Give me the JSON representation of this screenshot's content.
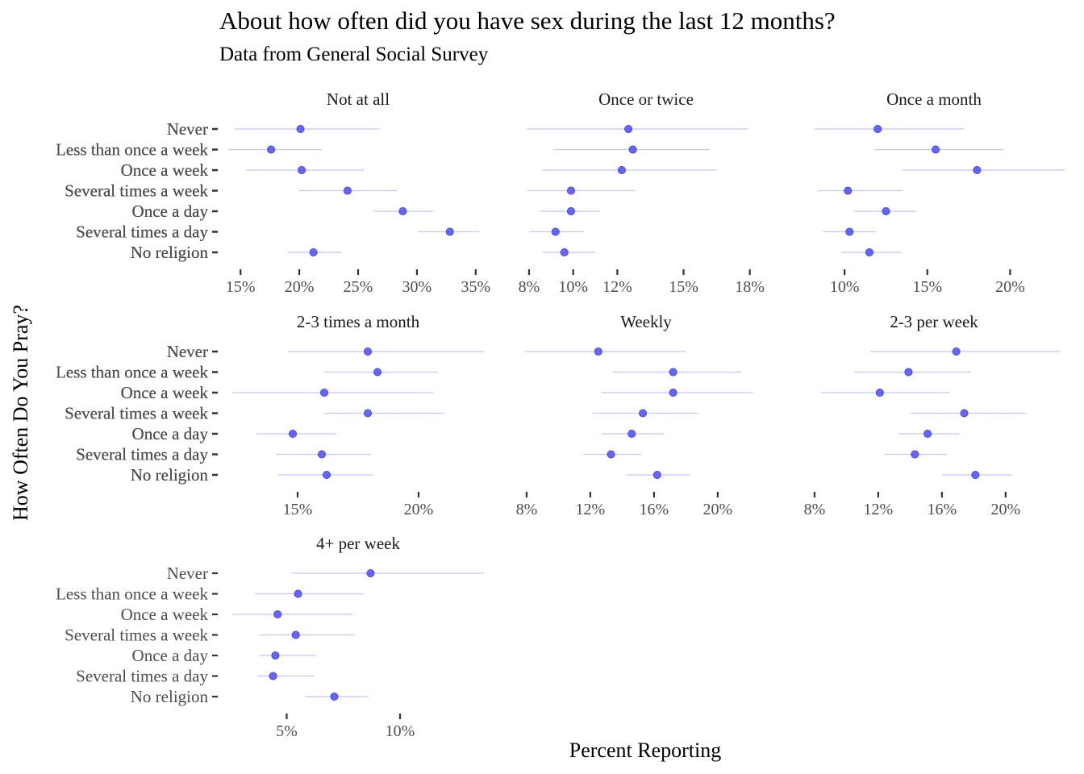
{
  "chart_data": {
    "type": "dot-errorbar-facets",
    "title": "About how often did you have sex during the last 12 months?",
    "subtitle": "Data from General Social Survey",
    "xlabel": "Percent Reporting",
    "ylabel": "How Often Do You Pray?",
    "categories": [
      "Never",
      "Less than once a week",
      "Once a week",
      "Several times a week",
      "Once a day",
      "Several times a day",
      "No religion"
    ],
    "point_color": "#5555ff",
    "bar_color": "#c4c4ff",
    "facets": [
      {
        "name": "Not at all",
        "xlim": [
          14.3,
          35.7
        ],
        "ticks": [
          15,
          20,
          25,
          30,
          35
        ],
        "tick_labels": [
          "15%",
          "20%",
          "25%",
          "30%",
          "35%"
        ],
        "values": [
          20.1,
          17.6,
          20.2,
          24.1,
          28.8,
          32.8,
          21.2
        ],
        "lower": [
          14.5,
          14.0,
          15.5,
          20.0,
          26.3,
          30.1,
          19.0
        ],
        "upper": [
          26.8,
          21.9,
          25.5,
          28.3,
          31.4,
          35.3,
          23.6
        ]
      },
      {
        "name": "Once or twice",
        "xlim": [
          7.6,
          19.0
        ],
        "ticks": [
          8,
          10,
          12,
          15,
          18
        ],
        "tick_labels": [
          "8%",
          "10%",
          "12%",
          "15%",
          "18%"
        ],
        "values": [
          12.5,
          12.7,
          12.2,
          9.9,
          9.9,
          9.2,
          9.6
        ],
        "lower": [
          7.9,
          9.1,
          8.6,
          7.9,
          8.5,
          8.0,
          8.6
        ],
        "upper": [
          17.9,
          16.2,
          16.5,
          12.8,
          11.2,
          10.5,
          11.0
        ]
      },
      {
        "name": "Once a month",
        "xlim": [
          7.8,
          23.0
        ],
        "ticks": [
          10,
          15,
          20
        ],
        "tick_labels": [
          "10%",
          "15%",
          "20%"
        ],
        "values": [
          12.0,
          15.5,
          18.0,
          10.2,
          12.5,
          10.3,
          11.5
        ],
        "lower": [
          8.2,
          11.8,
          13.5,
          8.4,
          10.6,
          8.7,
          9.8
        ],
        "upper": [
          17.2,
          19.6,
          23.3,
          13.5,
          14.3,
          11.9,
          13.4
        ]
      },
      {
        "name": "2-3 times a month",
        "xlim": [
          12.3,
          22.7
        ],
        "ticks": [
          15,
          20
        ],
        "tick_labels": [
          "15%",
          "20%"
        ],
        "values": [
          17.9,
          18.3,
          16.1,
          17.9,
          14.8,
          16.0,
          16.2
        ],
        "lower": [
          14.6,
          16.1,
          12.3,
          16.1,
          13.3,
          14.1,
          14.2
        ],
        "upper": [
          22.7,
          20.8,
          20.6,
          21.1,
          16.6,
          18.0,
          18.1
        ]
      },
      {
        "name": "Weekly",
        "xlim": [
          7.6,
          23.4
        ],
        "ticks": [
          8,
          12,
          16,
          20
        ],
        "tick_labels": [
          "8%",
          "12%",
          "16%",
          "20%"
        ],
        "values": [
          12.5,
          17.2,
          17.2,
          15.3,
          14.6,
          13.3,
          16.2
        ],
        "lower": [
          7.9,
          13.4,
          12.7,
          12.1,
          12.7,
          11.6,
          14.3
        ],
        "upper": [
          18.0,
          21.5,
          22.2,
          18.8,
          16.6,
          15.2,
          18.3
        ]
      },
      {
        "name": "2-3 per week",
        "xlim": [
          7.6,
          23.4
        ],
        "ticks": [
          8,
          12,
          16,
          20
        ],
        "tick_labels": [
          "8%",
          "12%",
          "16%",
          "20%"
        ],
        "values": [
          16.9,
          13.9,
          12.1,
          17.4,
          15.1,
          14.3,
          18.1
        ],
        "lower": [
          11.5,
          10.5,
          8.4,
          14.0,
          13.3,
          12.4,
          16.0
        ],
        "upper": [
          23.4,
          17.8,
          16.5,
          21.3,
          17.1,
          16.3,
          20.4
        ]
      },
      {
        "name": "4+ per week",
        "xlim": [
          2.6,
          13.7
        ],
        "ticks": [
          5,
          10
        ],
        "tick_labels": [
          "5%",
          "10%"
        ],
        "values": [
          8.7,
          5.5,
          4.6,
          5.4,
          4.5,
          4.4,
          7.1
        ],
        "lower": [
          5.2,
          3.6,
          2.6,
          3.8,
          3.8,
          3.7,
          5.8
        ],
        "upper": [
          13.7,
          8.4,
          7.9,
          8.0,
          6.3,
          6.2,
          8.6
        ]
      }
    ]
  }
}
